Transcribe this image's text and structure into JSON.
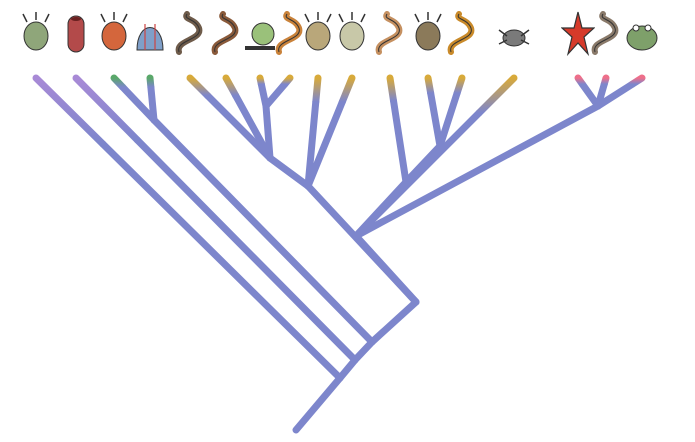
{
  "colors": {
    "branch": "#7d86cc",
    "tip_purple": "#a88ad6",
    "tip_green": "#5aa86a",
    "tip_gold": "#d8aa3a",
    "tip_pink": "#ee6f8a"
  },
  "taxa": [
    {
      "name": "placozoan-icon",
      "tip": "tip_purple"
    },
    {
      "name": "sponge-icon",
      "tip": "tip_purple"
    },
    {
      "name": "sea-anemone-icon",
      "tip": "tip_green"
    },
    {
      "name": "comb-jelly-icon",
      "tip": "tip_green"
    },
    {
      "name": "flatworm-icon",
      "tip": "tip_gold"
    },
    {
      "name": "ribbon-worm-icon",
      "tip": "tip_gold"
    },
    {
      "name": "snail-icon",
      "tip": "tip_gold"
    },
    {
      "name": "segmented-worm-icon",
      "tip": "tip_gold"
    },
    {
      "name": "bryozoan-icon",
      "tip": "tip_gold"
    },
    {
      "name": "rotifer-icon",
      "tip": "tip_gold"
    },
    {
      "name": "nematode-icon",
      "tip": "tip_gold"
    },
    {
      "name": "tardigrade-icon",
      "tip": "tip_gold"
    },
    {
      "name": "velvet-worm-icon",
      "tip": "tip_gold"
    },
    {
      "name": "spider-icon",
      "tip": "tip_gold"
    },
    {
      "name": "sea-star-icon",
      "tip": "tip_pink"
    },
    {
      "name": "lancelet-icon",
      "tip": "tip_pink"
    },
    {
      "name": "frog-icon",
      "tip": "tip_pink"
    }
  ]
}
